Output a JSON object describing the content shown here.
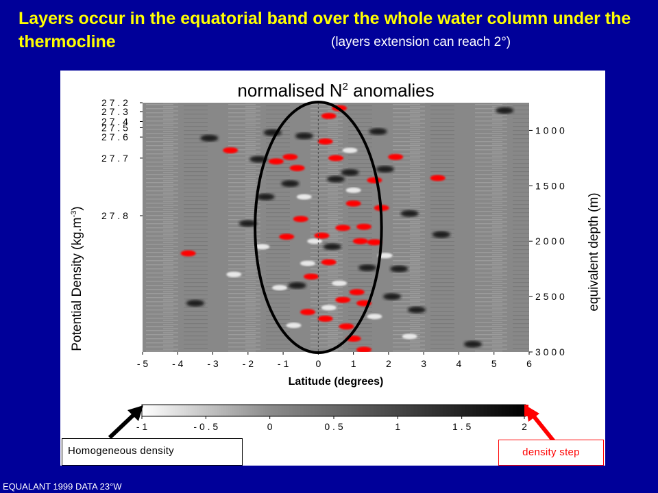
{
  "slide": {
    "title": "Layers occur in the equatorial band over  the whole water column under the thermocline",
    "subtitle": "(layers extension can reach 2°)",
    "source_note": "EQUALANT 1999 DATA 23°W"
  },
  "callouts": {
    "left": "Homogeneous density",
    "right": "density step"
  },
  "chart_data": {
    "type": "heatmap",
    "title": "normalised N",
    "title_sup": "2",
    "title_suffix": " anomalies",
    "xlabel": "Latitude (degrees)",
    "ylabel": "Potential Density (kg.m",
    "ylabel_sup": "-3",
    "ylabel_suffix": ")",
    "y2label": "equivalent depth (m)",
    "xlim": [
      -5,
      6
    ],
    "x_ticks": [
      {
        "value": -5,
        "label": "- 5"
      },
      {
        "value": -4,
        "label": "- 4"
      },
      {
        "value": -3,
        "label": "- 3"
      },
      {
        "value": -2,
        "label": "- 2"
      },
      {
        "value": -1,
        "label": "- 1"
      },
      {
        "value": 0,
        "label": "0"
      },
      {
        "value": 1,
        "label": "1"
      },
      {
        "value": 2,
        "label": "2"
      },
      {
        "value": 3,
        "label": "3"
      },
      {
        "value": 4,
        "label": "4"
      },
      {
        "value": 5,
        "label": "5"
      },
      {
        "value": 6,
        "label": "6"
      }
    ],
    "density_ticks": [
      {
        "value": 27.2,
        "label": "2 7 . 2"
      },
      {
        "value": 27.3,
        "label": "2 7 . 3"
      },
      {
        "value": 27.4,
        "label": "2 7 . 4"
      },
      {
        "value": 27.5,
        "label": "2 7 . 5"
      },
      {
        "value": 27.6,
        "label": "2 7 . 6"
      },
      {
        "value": 27.7,
        "label": "2 7 . 7"
      },
      {
        "value": 27.8,
        "label": "2 7 . 8"
      }
    ],
    "depth_range": [
      750,
      3000
    ],
    "depth_ticks": [
      {
        "value": 1000,
        "label": "1 0 0 0"
      },
      {
        "value": 1500,
        "label": "1 5 0 0"
      },
      {
        "value": 2000,
        "label": "2 0 0 0"
      },
      {
        "value": 2500,
        "label": "2 5 0 0"
      },
      {
        "value": 3000,
        "label": "3 0 0 0"
      }
    ],
    "density_depth_pairs": [
      {
        "density": 27.2,
        "depth": 750
      },
      {
        "density": 27.3,
        "depth": 830
      },
      {
        "density": 27.4,
        "depth": 920
      },
      {
        "density": 27.5,
        "depth": 975
      },
      {
        "density": 27.6,
        "depth": 1060
      },
      {
        "density": 27.7,
        "depth": 1250
      },
      {
        "density": 27.8,
        "depth": 1770
      }
    ],
    "colorbar": {
      "range": [
        -1,
        2
      ],
      "ticks": [
        {
          "value": -1,
          "label": "- 1"
        },
        {
          "value": -0.5,
          "label": "- 0 . 5"
        },
        {
          "value": 0,
          "label": "0"
        },
        {
          "value": 0.5,
          "label": "0 . 5"
        },
        {
          "value": 1,
          "label": "1"
        },
        {
          "value": 1.5,
          "label": "1 . 5"
        },
        {
          "value": 2,
          "label": "2"
        }
      ],
      "colors": {
        "low": "#ffffff",
        "mid": "#8c8c8c",
        "high": "#000000",
        "step": "#ff0000"
      }
    },
    "highlight_ellipse": {
      "center_lat": 0,
      "lat_halfwidth": 1.8,
      "depth_top": 750,
      "depth_bottom": 3000
    },
    "equator_line_lat": 0,
    "step_patches": [
      {
        "lat": 0.6,
        "depth": 800
      },
      {
        "lat": 0.3,
        "depth": 870
      },
      {
        "lat": 0.2,
        "depth": 1100
      },
      {
        "lat": 0.5,
        "depth": 1250
      },
      {
        "lat": -2.5,
        "depth": 1180
      },
      {
        "lat": -1.2,
        "depth": 1280
      },
      {
        "lat": -0.8,
        "depth": 1240
      },
      {
        "lat": 2.2,
        "depth": 1240
      },
      {
        "lat": 3.4,
        "depth": 1430
      },
      {
        "lat": 1.6,
        "depth": 1450
      },
      {
        "lat": -0.6,
        "depth": 1340
      },
      {
        "lat": 1.0,
        "depth": 1660
      },
      {
        "lat": 1.8,
        "depth": 1700
      },
      {
        "lat": -0.5,
        "depth": 1800
      },
      {
        "lat": 1.3,
        "depth": 1870
      },
      {
        "lat": 0.7,
        "depth": 1880
      },
      {
        "lat": -0.9,
        "depth": 1960
      },
      {
        "lat": 0.1,
        "depth": 1950
      },
      {
        "lat": 1.2,
        "depth": 2000
      },
      {
        "lat": 1.6,
        "depth": 2010
      },
      {
        "lat": -3.7,
        "depth": 2110
      },
      {
        "lat": 0.3,
        "depth": 2190
      },
      {
        "lat": -0.2,
        "depth": 2320
      },
      {
        "lat": 1.1,
        "depth": 2460
      },
      {
        "lat": 0.7,
        "depth": 2530
      },
      {
        "lat": 1.3,
        "depth": 2560
      },
      {
        "lat": 0.8,
        "depth": 2770
      },
      {
        "lat": 0.2,
        "depth": 2700
      },
      {
        "lat": -0.3,
        "depth": 2640
      },
      {
        "lat": 1.0,
        "depth": 2880
      },
      {
        "lat": 1.3,
        "depth": 2980
      }
    ],
    "dark_patches": [
      {
        "lat": 1.7,
        "depth": 1010
      },
      {
        "lat": -1.3,
        "depth": 1020
      },
      {
        "lat": -0.4,
        "depth": 1050
      },
      {
        "lat": -3.1,
        "depth": 1070
      },
      {
        "lat": -1.7,
        "depth": 1260
      },
      {
        "lat": 1.9,
        "depth": 1350
      },
      {
        "lat": -0.8,
        "depth": 1480
      },
      {
        "lat": -1.5,
        "depth": 1600
      },
      {
        "lat": 0.5,
        "depth": 1440
      },
      {
        "lat": 2.6,
        "depth": 1750
      },
      {
        "lat": -2.0,
        "depth": 1840
      },
      {
        "lat": 0.4,
        "depth": 2050
      },
      {
        "lat": 2.3,
        "depth": 2250
      },
      {
        "lat": 1.4,
        "depth": 2240
      },
      {
        "lat": -0.6,
        "depth": 2400
      },
      {
        "lat": 2.8,
        "depth": 2620
      },
      {
        "lat": 4.4,
        "depth": 2930
      },
      {
        "lat": 5.3,
        "depth": 820
      },
      {
        "lat": 3.5,
        "depth": 1940
      },
      {
        "lat": -3.5,
        "depth": 2560
      },
      {
        "lat": 0.9,
        "depth": 1380
      },
      {
        "lat": 2.1,
        "depth": 2500
      }
    ],
    "light_patches": [
      {
        "lat": -0.4,
        "depth": 1600
      },
      {
        "lat": 1.0,
        "depth": 1540
      },
      {
        "lat": -0.1,
        "depth": 2000
      },
      {
        "lat": -0.3,
        "depth": 2200
      },
      {
        "lat": 0.6,
        "depth": 2380
      },
      {
        "lat": -1.1,
        "depth": 2420
      },
      {
        "lat": 0.3,
        "depth": 2600
      },
      {
        "lat": 1.6,
        "depth": 2680
      },
      {
        "lat": -0.7,
        "depth": 2760
      },
      {
        "lat": 2.6,
        "depth": 2860
      },
      {
        "lat": -2.4,
        "depth": 2300
      },
      {
        "lat": 1.9,
        "depth": 2130
      },
      {
        "lat": -1.6,
        "depth": 2050
      },
      {
        "lat": 0.9,
        "depth": 1180
      }
    ]
  }
}
